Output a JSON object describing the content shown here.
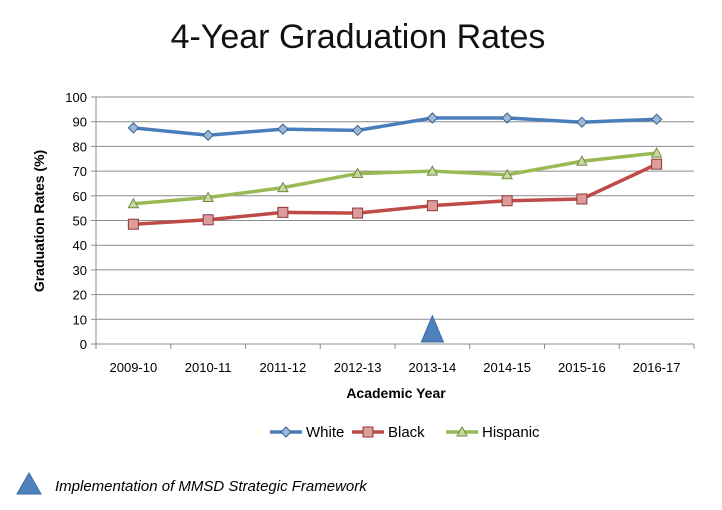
{
  "chart_data": {
    "type": "line",
    "title": "4-Year Graduation Rates",
    "xlabel": "Academic Year",
    "ylabel": "Graduation Rates (%)",
    "ylim": [
      0,
      100
    ],
    "yticks": [
      0,
      10,
      20,
      30,
      40,
      50,
      60,
      70,
      80,
      90,
      100
    ],
    "grid": true,
    "legend_position": "bottom",
    "categories": [
      "2009-10",
      "2010-11",
      "2011-12",
      "2012-13",
      "2013-14",
      "2014-15",
      "2015-16",
      "2016-17"
    ],
    "series": [
      {
        "name": "White",
        "color": "#4a7ebb",
        "marker": "diamond",
        "values": [
          87.5,
          84.5,
          87.0,
          86.5,
          91.5,
          91.5,
          89.8,
          91.0
        ]
      },
      {
        "name": "Black",
        "color": "#be4b48",
        "marker": "square",
        "values": [
          48.5,
          50.3,
          53.3,
          53.0,
          56.0,
          58.0,
          58.7,
          72.8
        ]
      },
      {
        "name": "Hispanic",
        "color": "#98b954",
        "marker": "triangle",
        "values": [
          56.8,
          59.3,
          63.3,
          69.0,
          70.0,
          68.5,
          74.0,
          77.3
        ]
      }
    ],
    "annotations": [
      {
        "marker": "triangle",
        "category": "2013-14",
        "y": 5,
        "color": "#4f81bd"
      }
    ]
  },
  "footnote": {
    "text": "Implementation of MMSD Strategic Framework",
    "marker": "triangle",
    "color": "#4f81bd"
  }
}
